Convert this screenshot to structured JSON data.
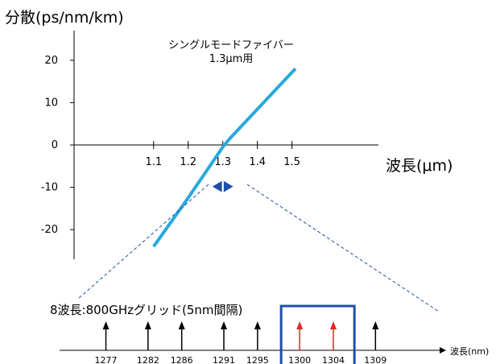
{
  "chart_data": [
    {
      "type": "line",
      "ylabel": "分散(ps/nm/km)",
      "xlabel": "波長(μm)",
      "annotation": [
        "シングルモードファイバー",
        "1.3μm用"
      ],
      "xlim": [
        0.87,
        1.75
      ],
      "ylim": [
        -27,
        27
      ],
      "x_ticks": [
        "1.1",
        "1.2",
        "1.3",
        "1.4",
        "1.5"
      ],
      "x_tick_values": [
        1.1,
        1.2,
        1.3,
        1.4,
        1.5
      ],
      "y_ticks": [
        "20",
        "10",
        "0",
        "-10",
        "-20"
      ],
      "y_tick_values": [
        20,
        10,
        0,
        -10,
        -20
      ],
      "grid": false,
      "series": [
        {
          "color": "#29a8df",
          "points": [
            [
              1.1,
              -24
            ],
            [
              1.2,
              -12.5
            ],
            [
              1.3,
              -0.5
            ],
            [
              1.32,
              1.5
            ],
            [
              1.51,
              18
            ]
          ]
        }
      ],
      "highlight_range": [
        1.27,
        1.33
      ],
      "highlight_color": "#1f4fa8"
    },
    {
      "type": "scatter",
      "title": "8波長:800GHzグリッド(5nm間隔)",
      "xlabel": "波長(nm)",
      "xlim": [
        1271.5,
        1317
      ],
      "categories": [
        "1277",
        "1282",
        "1286",
        "1291",
        "1295",
        "1300",
        "1304",
        "1309"
      ],
      "values": [
        1277,
        1282,
        1286,
        1291,
        1295,
        1300,
        1304,
        1309
      ],
      "colors": [
        "#000000",
        "#000000",
        "#000000",
        "#000000",
        "#000000",
        "#e52421",
        "#e52421",
        "#000000"
      ],
      "highlight_range": [
        1297.8,
        1306.5
      ],
      "highlight_color": "#1f4fa8"
    }
  ]
}
